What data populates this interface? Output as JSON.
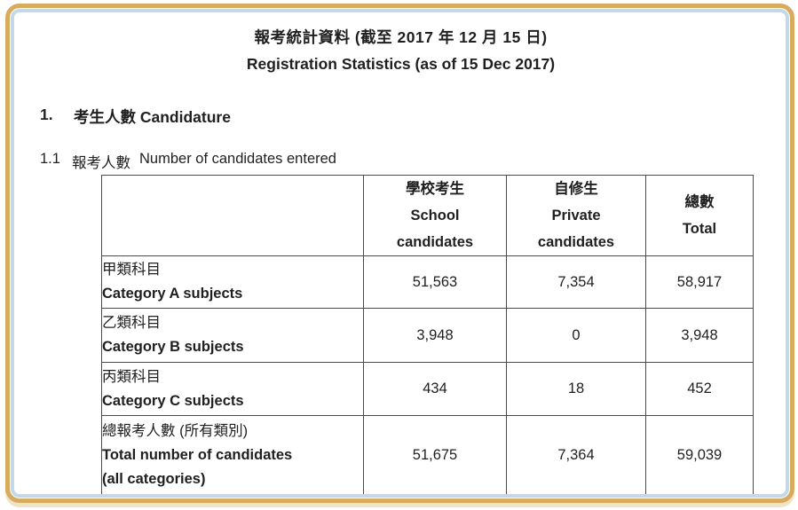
{
  "frame": {
    "gold_color": "#d9ab5c",
    "blue_color": "#c3d9ea",
    "shadow_color": "#efe3c7"
  },
  "title": {
    "line_zh": "報考統計資料 (截至 2017 年 12 月 15 日)",
    "line_en": "Registration Statistics (as of 15 Dec 2017)"
  },
  "section1": {
    "number": "1.",
    "heading": "考生人數  Candidature"
  },
  "subsection11": {
    "number": "1.1",
    "heading_zh": "報考人數",
    "heading_en": "Number of candidates entered"
  },
  "table": {
    "columns": [
      {
        "zh": "學校考生",
        "en1": "School",
        "en2": "candidates"
      },
      {
        "zh": "自修生",
        "en1": "Private",
        "en2": "candidates"
      },
      {
        "zh": "總數",
        "en1": "Total",
        "en2": ""
      }
    ],
    "rows": [
      {
        "label_zh": "甲類科目",
        "label_en": "Category A subjects",
        "label_en2": "",
        "school": "51,563",
        "private": "7,354",
        "total": "58,917"
      },
      {
        "label_zh": "乙類科目",
        "label_en": "Category B subjects",
        "label_en2": "",
        "school": "3,948",
        "private": "0",
        "total": "3,948"
      },
      {
        "label_zh": "丙類科目",
        "label_en": "Category C subjects",
        "label_en2": "",
        "school": "434",
        "private": "18",
        "total": "452"
      },
      {
        "label_zh": "總報考人數 (所有類別)",
        "label_en": "Total number of candidates",
        "label_en2": "(all categories)",
        "school": "51,675",
        "private": "7,364",
        "total": "59,039"
      }
    ]
  }
}
